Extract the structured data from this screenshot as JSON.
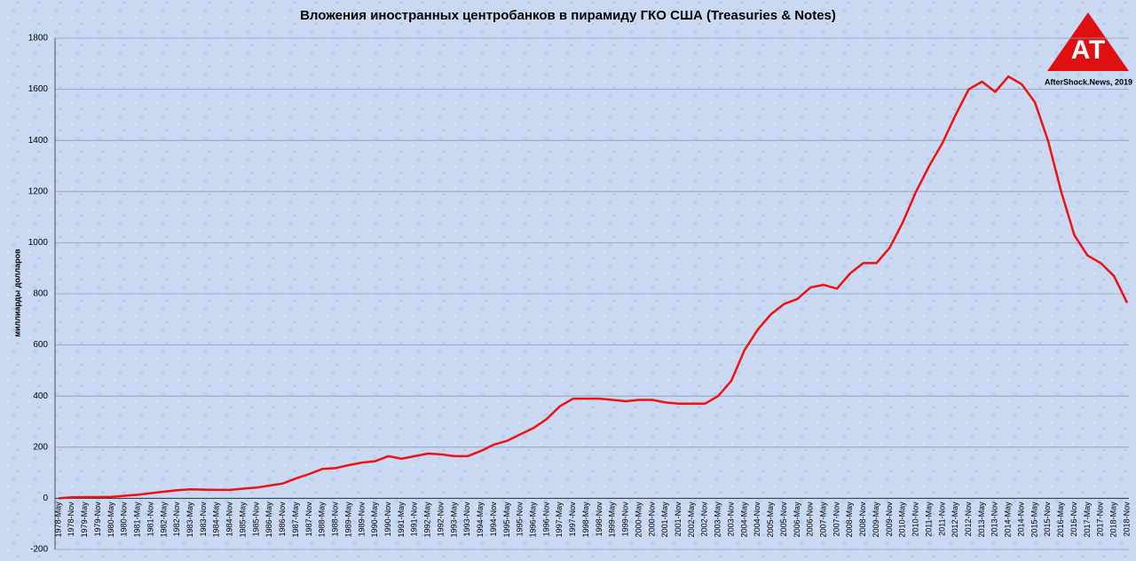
{
  "chart_data": {
    "type": "line",
    "title": "Вложения иностранных центробанков в пирамиду ГКО США (Treasuries & Notes)",
    "y_label": "миллиарды долларов",
    "annotation": "AfterShock.News, 2019",
    "categories": [
      "1978-May",
      "1978-Nov",
      "1979-May",
      "1979-Nov",
      "1980-May",
      "1980-Nov",
      "1981-May",
      "1981-Nov",
      "1982-May",
      "1982-Nov",
      "1983-May",
      "1983-Nov",
      "1984-May",
      "1984-Nov",
      "1985-May",
      "1985-Nov",
      "1986-May",
      "1986-Nov",
      "1987-May",
      "1987-Nov",
      "1988-May",
      "1988-Nov",
      "1989-May",
      "1989-Nov",
      "1990-May",
      "1990-Nov",
      "1991-May",
      "1991-Nov",
      "1992-May",
      "1992-Nov",
      "1993-May",
      "1993-Nov",
      "1994-May",
      "1994-Nov",
      "1995-May",
      "1995-Nov",
      "1996-May",
      "1996-Nov",
      "1997-May",
      "1997-Nov",
      "1998-May",
      "1998-Nov",
      "1999-May",
      "1999-Nov",
      "2000-May",
      "2000-Nov",
      "2001-May",
      "2001-Nov",
      "2002-May",
      "2002-Nov",
      "2003-May",
      "2003-Nov",
      "2004-May",
      "2004-Nov",
      "2005-May",
      "2005-Nov",
      "2006-May",
      "2006-Nov",
      "2007-May",
      "2007-Nov",
      "2008-May",
      "2008-Nov",
      "2009-May",
      "2009-Nov",
      "2010-May",
      "2010-Nov",
      "2011-May",
      "2011-Nov",
      "2012-May",
      "2012-Nov",
      "2013-May",
      "2013-Nov",
      "2014-May",
      "2014-Nov",
      "2015-May",
      "2015-Nov",
      "2016-May",
      "2016-Nov",
      "2017-May",
      "2017-Nov",
      "2018-May",
      "2018-Nov"
    ],
    "series": [
      {
        "name": "Вложения",
        "color": "#ee1111",
        "values": [
          0,
          4,
          5,
          5,
          6,
          10,
          14,
          20,
          26,
          32,
          35,
          34,
          33,
          33,
          38,
          42,
          50,
          58,
          78,
          95,
          115,
          118,
          130,
          140,
          145,
          165,
          155,
          165,
          175,
          172,
          165,
          165,
          185,
          210,
          225,
          250,
          275,
          310,
          360,
          390,
          390,
          390,
          385,
          380,
          385,
          385,
          375,
          370,
          370,
          370,
          400,
          460,
          580,
          660,
          720,
          760,
          780,
          825,
          835,
          820,
          880,
          920,
          920,
          980,
          1080,
          1200,
          1300,
          1390,
          1500,
          1600,
          1630,
          1590,
          1650,
          1620,
          1550,
          1400,
          1200,
          1030,
          950,
          920,
          870,
          765
        ]
      }
    ],
    "ylim": [
      -200,
      1800
    ],
    "yticks": [
      -200,
      0,
      200,
      400,
      600,
      800,
      1000,
      1200,
      1400,
      1600,
      1800
    ],
    "grid": true
  }
}
